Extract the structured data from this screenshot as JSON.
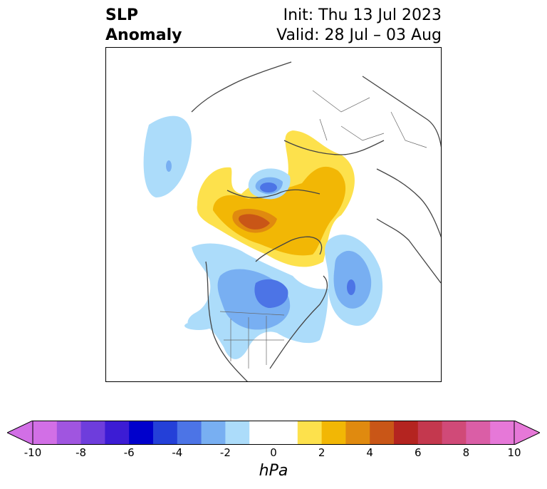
{
  "header": {
    "title_line1": "SLP",
    "title_line2": "Anomaly",
    "init": "Init: Thu 13 Jul 2023",
    "valid": "Valid: 28 Jul – 03 Aug"
  },
  "colorbar": {
    "unit": "hPa",
    "tick_labels": [
      "-10",
      "-8",
      "-6",
      "-4",
      "-2",
      "0",
      "2",
      "4",
      "6",
      "8",
      "10"
    ],
    "bins": [
      {
        "from": -10,
        "to": -9,
        "color": "#d26fe6"
      },
      {
        "from": -9,
        "to": -8,
        "color": "#a055e0"
      },
      {
        "from": -8,
        "to": -7,
        "color": "#6e3ddc"
      },
      {
        "from": -7,
        "to": -6,
        "color": "#3c1cd4"
      },
      {
        "from": -6,
        "to": -5,
        "color": "#0000cc"
      },
      {
        "from": -5,
        "to": -4,
        "color": "#2440d8"
      },
      {
        "from": -4,
        "to": -3,
        "color": "#4c74e6"
      },
      {
        "from": -3,
        "to": -2,
        "color": "#78aff2"
      },
      {
        "from": -2,
        "to": -1,
        "color": "#acdcfa"
      },
      {
        "from": -1,
        "to": 1,
        "color": "#ffffff"
      },
      {
        "from": 1,
        "to": 2,
        "color": "#fde14c"
      },
      {
        "from": 2,
        "to": 3,
        "color": "#f2b705"
      },
      {
        "from": 3,
        "to": 4,
        "color": "#e08a0f"
      },
      {
        "from": 4,
        "to": 5,
        "color": "#c95617"
      },
      {
        "from": 5,
        "to": 6,
        "color": "#b42420"
      },
      {
        "from": 6,
        "to": 7,
        "color": "#c4384e"
      },
      {
        "from": 7,
        "to": 8,
        "color": "#d04a78"
      },
      {
        "from": 8,
        "to": 9,
        "color": "#da5ea6"
      },
      {
        "from": 9,
        "to": 10,
        "color": "#e678d8"
      }
    ],
    "extend_low_color": "#d26fe6",
    "extend_high_color": "#e678d8"
  }
}
